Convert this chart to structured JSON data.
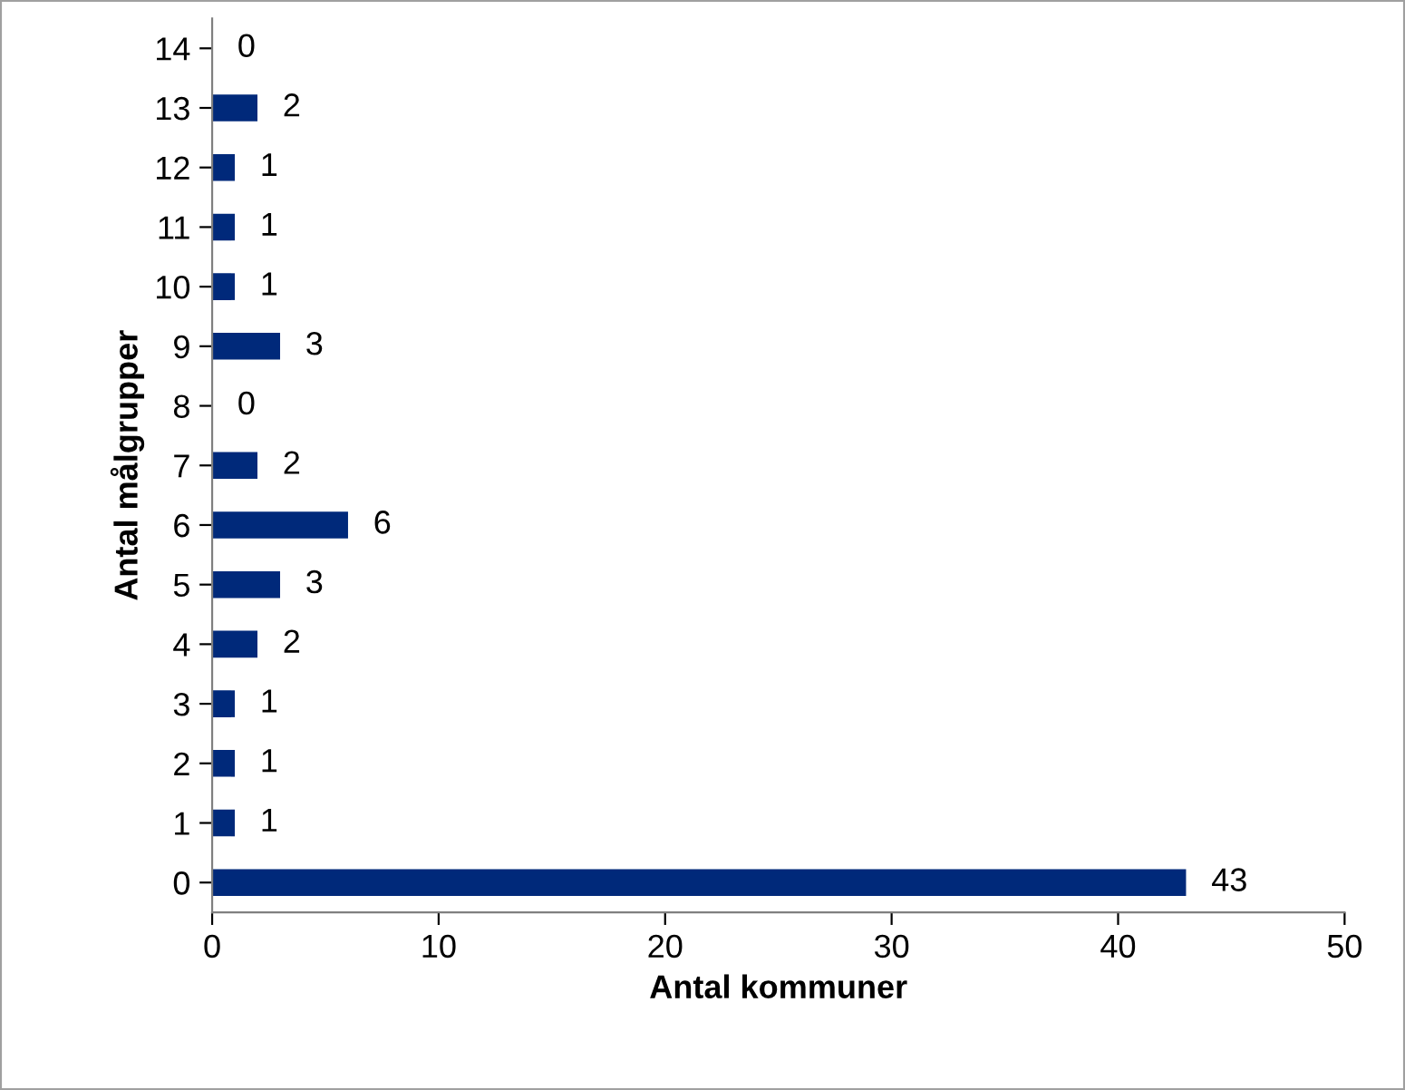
{
  "chart_data": {
    "type": "bar",
    "orientation": "horizontal",
    "xlabel": "Antal kommuner",
    "ylabel": "Antal målgrupper",
    "categories": [
      "14",
      "13",
      "12",
      "11",
      "10",
      "9",
      "8",
      "7",
      "6",
      "5",
      "4",
      "3",
      "2",
      "1",
      "0"
    ],
    "values": [
      0,
      2,
      1,
      1,
      1,
      3,
      0,
      2,
      6,
      3,
      2,
      1,
      1,
      1,
      43
    ],
    "color": "#00297a",
    "xlim": [
      0,
      50
    ],
    "xticks": [
      0,
      10,
      20,
      30,
      40,
      50
    ],
    "data_labels": true,
    "grid": false,
    "legend": false
  }
}
